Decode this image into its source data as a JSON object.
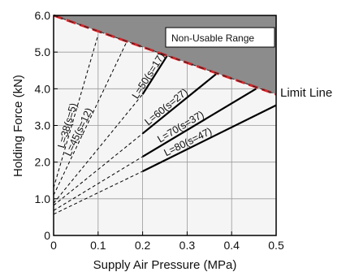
{
  "chart_data": {
    "type": "line",
    "xlabel": "Supply Air Pressure (MPa)",
    "ylabel": "Holding Force (kN)",
    "xlim": [
      0,
      0.5
    ],
    "ylim": [
      0,
      6.0
    ],
    "x_ticks": [
      "0",
      "0.1",
      "0.2",
      "0.3",
      "0.4",
      "0.5"
    ],
    "y_ticks": [
      "0",
      "1.0",
      "2.0",
      "3.0",
      "4.0",
      "5.0",
      "6.0"
    ],
    "grid": true,
    "region_label": "Non-Usable Range",
    "limit_line": {
      "label": "Limit Line",
      "x": [
        0,
        0.5
      ],
      "y": [
        6.0,
        3.85
      ]
    },
    "series": [
      {
        "name": "L=38(s=5)",
        "x": [
          0,
          0.1
        ],
        "y": [
          1.3,
          5.47
        ],
        "usable_from": null
      },
      {
        "name": "L=45(s=12)",
        "x": [
          0,
          0.165
        ],
        "y": [
          1.1,
          5.3
        ],
        "usable_from": null
      },
      {
        "name": "L=50(s=17)",
        "x": [
          0,
          0.2,
          0.255
        ],
        "y": [
          0.88,
          3.85,
          4.9
        ],
        "usable_from": 0.2
      },
      {
        "name": "L=60(s=27)",
        "x": [
          0,
          0.2,
          0.365
        ],
        "y": [
          0.82,
          2.78,
          4.4
        ],
        "usable_from": 0.2
      },
      {
        "name": "L=70(s=37)",
        "x": [
          0,
          0.2,
          0.455
        ],
        "y": [
          0.68,
          2.15,
          4.0
        ],
        "usable_from": 0.2
      },
      {
        "name": "L=80(s=47)",
        "x": [
          0,
          0.2,
          0.5
        ],
        "y": [
          0.58,
          1.75,
          3.55
        ],
        "usable_from": 0.2
      }
    ]
  }
}
